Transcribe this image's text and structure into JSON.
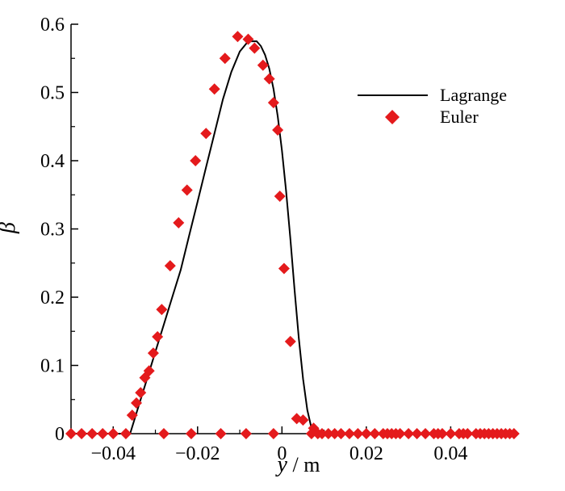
{
  "chart_data": {
    "type": "scatter",
    "xlabel_var": "y",
    "xlabel_unit": "m",
    "ylabel": "β",
    "xlim": [
      -0.05,
      0.056
    ],
    "ylim": [
      0,
      0.6
    ],
    "x_ticks": [
      -0.04,
      -0.02,
      0,
      0.02,
      0.04
    ],
    "x_tick_labels": [
      "−0.04",
      "−0.02",
      "0",
      "0.02",
      "0.04"
    ],
    "y_ticks": [
      0,
      0.1,
      0.2,
      0.3,
      0.4,
      0.5,
      0.6
    ],
    "y_tick_labels": [
      "0",
      "0.1",
      "0.2",
      "0.3",
      "0.4",
      "0.5",
      "0.6"
    ],
    "legend_position": "top-right",
    "series": [
      {
        "name": "Lagrange",
        "kind": "line",
        "color": "#000000",
        "x": [
          -0.05,
          -0.036,
          -0.034,
          -0.032,
          -0.03,
          -0.028,
          -0.026,
          -0.024,
          -0.022,
          -0.02,
          -0.018,
          -0.016,
          -0.014,
          -0.012,
          -0.01,
          -0.008,
          -0.006,
          -0.005,
          -0.004,
          -0.003,
          -0.002,
          -0.001,
          0,
          0.001,
          0.002,
          0.003,
          0.004,
          0.005,
          0.006,
          0.007,
          0.0075,
          0.008,
          0.056
        ],
        "y": [
          0,
          0,
          0.04,
          0.08,
          0.12,
          0.16,
          0.2,
          0.24,
          0.29,
          0.34,
          0.39,
          0.44,
          0.49,
          0.53,
          0.56,
          0.575,
          0.575,
          0.568,
          0.555,
          0.535,
          0.505,
          0.465,
          0.415,
          0.355,
          0.285,
          0.21,
          0.14,
          0.08,
          0.035,
          0.008,
          0.003,
          0,
          0
        ]
      },
      {
        "name": "Euler",
        "kind": "scatter",
        "color": "#e41a1c",
        "x": [
          -0.05,
          -0.0475,
          -0.045,
          -0.0425,
          -0.04,
          -0.037,
          -0.0355,
          -0.0345,
          -0.0335,
          -0.0325,
          -0.0315,
          -0.0305,
          -0.0295,
          -0.0285,
          -0.0265,
          -0.0245,
          -0.0225,
          -0.0205,
          -0.018,
          -0.016,
          -0.0135,
          -0.0105,
          -0.008,
          -0.0065,
          -0.0045,
          -0.003,
          -0.002,
          -0.001,
          -0.0005,
          0.0005,
          0.002,
          0.0035,
          0.005,
          0.0075,
          0.0085,
          0.0095,
          -0.028,
          -0.0215,
          -0.0145,
          -0.0085,
          -0.002,
          0.007,
          0.011,
          0.0125,
          0.014,
          0.016,
          0.018,
          0.02,
          0.022,
          0.024,
          0.025,
          0.026,
          0.027,
          0.028,
          0.03,
          0.032,
          0.034,
          0.036,
          0.037,
          0.038,
          0.04,
          0.042,
          0.043,
          0.044,
          0.046,
          0.047,
          0.048,
          0.049,
          0.05,
          0.051,
          0.052,
          0.053,
          0.054,
          0.055
        ],
        "y": [
          0,
          0,
          0,
          0,
          0,
          0,
          0.027,
          0.045,
          0.06,
          0.082,
          0.092,
          0.118,
          0.142,
          0.182,
          0.246,
          0.309,
          0.357,
          0.4,
          0.44,
          0.505,
          0.55,
          0.582,
          0.578,
          0.565,
          0.54,
          0.52,
          0.485,
          0.445,
          0.348,
          0.242,
          0.135,
          0.022,
          0.02,
          0.008,
          0,
          0,
          0,
          0,
          0,
          0,
          0,
          0,
          0,
          0,
          0,
          0,
          0,
          0,
          0,
          0,
          0,
          0,
          0,
          0,
          0,
          0,
          0,
          0,
          0,
          0,
          0,
          0,
          0,
          0,
          0,
          0,
          0,
          0,
          0,
          0,
          0,
          0,
          0,
          0
        ]
      }
    ]
  }
}
